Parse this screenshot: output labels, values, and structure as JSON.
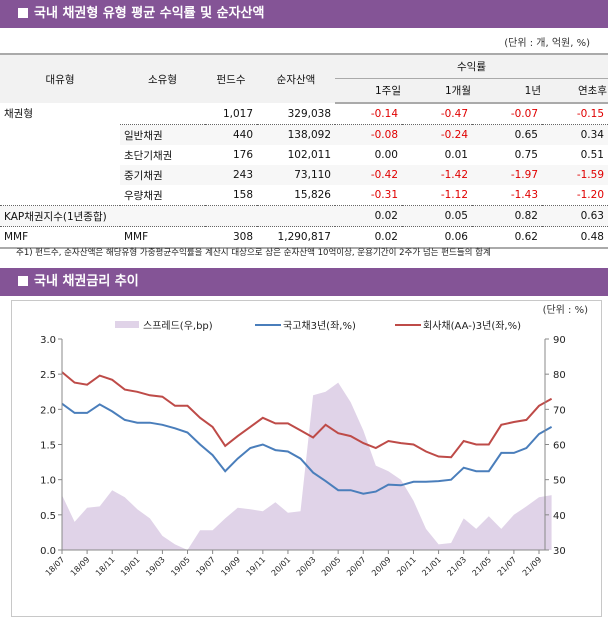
{
  "section1": {
    "title": "국내 채권형 유형 평균 수익률 및 순자산액",
    "unit": "(단위 : 개, 억원, %)"
  },
  "table": {
    "headers": {
      "major": "대유형",
      "minor": "소유형",
      "funds": "펀드수",
      "nav": "순자산액",
      "returns": "수익률",
      "r1w": "1주일",
      "r1m": "1개월",
      "r1y": "1년",
      "ytd": "연초후"
    },
    "rows": [
      {
        "major": "채권형",
        "minor": "",
        "funds": "1,017",
        "nav": "329,038",
        "r1w": "-0.14",
        "r1m": "-0.47",
        "r1y": "-0.07",
        "ytd": "-0.15"
      },
      {
        "major": "",
        "minor": "일반채권",
        "funds": "440",
        "nav": "138,092",
        "r1w": "-0.08",
        "r1m": "-0.24",
        "r1y": "0.65",
        "ytd": "0.34"
      },
      {
        "major": "",
        "minor": "초단기채권",
        "funds": "176",
        "nav": "102,011",
        "r1w": "0.00",
        "r1m": "0.01",
        "r1y": "0.75",
        "ytd": "0.51"
      },
      {
        "major": "",
        "minor": "중기채권",
        "funds": "243",
        "nav": "73,110",
        "r1w": "-0.42",
        "r1m": "-1.42",
        "r1y": "-1.97",
        "ytd": "-1.59"
      },
      {
        "major": "",
        "minor": "우량채권",
        "funds": "158",
        "nav": "15,826",
        "r1w": "-0.31",
        "r1m": "-1.12",
        "r1y": "-1.43",
        "ytd": "-1.20"
      },
      {
        "major": "KAP채권지수(1년종합)",
        "minor": "",
        "funds": "",
        "nav": "",
        "r1w": "0.02",
        "r1m": "0.05",
        "r1y": "0.82",
        "ytd": "0.63"
      },
      {
        "major": "MMF",
        "minor": "MMF",
        "funds": "308",
        "nav": "1,290,817",
        "r1w": "0.02",
        "r1m": "0.06",
        "r1y": "0.62",
        "ytd": "0.48"
      }
    ],
    "negative_color": "#e00000"
  },
  "footnote": "주1) 펀드수, 순자산액은 해당유형 가중평균수익률을 계산시 대상으로 삼은 순자산액 10억이상, 운용기간이 2주가 넘는 펀드들의 합계",
  "section2": {
    "title": "국내 채권금리 추이"
  },
  "chart_data": {
    "type": "line",
    "unit": "(단위 : %)",
    "x": [
      "18/07",
      "18/08",
      "18/09",
      "18/10",
      "18/11",
      "18/12",
      "19/01",
      "19/02",
      "19/03",
      "19/04",
      "19/05",
      "19/06",
      "19/07",
      "19/08",
      "19/09",
      "19/10",
      "19/11",
      "19/12",
      "20/01",
      "20/02",
      "20/03",
      "20/04",
      "20/05",
      "20/06",
      "20/07",
      "20/08",
      "20/09",
      "20/10",
      "20/11",
      "20/12",
      "21/01",
      "21/02",
      "21/03",
      "21/04",
      "21/05",
      "21/06",
      "21/07",
      "21/08",
      "21/09",
      "21/10"
    ],
    "x_ticks": [
      "18/07",
      "18/09",
      "18/11",
      "19/01",
      "19/03",
      "19/05",
      "19/07",
      "19/09",
      "19/11",
      "20/01",
      "20/03",
      "20/05",
      "20/07",
      "20/09",
      "20/11",
      "21/01",
      "21/03",
      "21/05",
      "21/07",
      "21/09"
    ],
    "y_left": {
      "range": [
        0,
        3
      ],
      "ticks": [
        "0.0",
        "0.5",
        "1.0",
        "1.5",
        "2.0",
        "2.5",
        "3.0"
      ]
    },
    "y_right": {
      "range": [
        30,
        90
      ],
      "ticks": [
        "30",
        "40",
        "50",
        "60",
        "70",
        "80",
        "90"
      ]
    },
    "legend_position": "top",
    "series": [
      {
        "name": "스프레드(우,bp)",
        "type": "area",
        "axis": "right",
        "color": "#e0d3e8",
        "values": [
          45.6,
          38,
          42,
          42.4,
          47,
          45,
          41.6,
          39,
          34,
          31.6,
          30,
          35.6,
          35.6,
          39,
          42,
          41.6,
          41,
          43.6,
          40.6,
          41,
          74,
          75,
          77.6,
          72,
          64,
          54,
          52.4,
          50,
          44,
          36,
          31.6,
          32,
          39,
          36,
          39.6,
          36,
          40,
          42.4,
          45,
          45.6
        ]
      },
      {
        "name": "국고채3년(좌,%)",
        "type": "line",
        "axis": "left",
        "color": "#4a7ebb",
        "values": [
          2.08,
          1.95,
          1.95,
          2.07,
          1.97,
          1.85,
          1.81,
          1.81,
          1.78,
          1.73,
          1.67,
          1.5,
          1.35,
          1.12,
          1.3,
          1.45,
          1.5,
          1.42,
          1.4,
          1.3,
          1.1,
          0.98,
          0.85,
          0.85,
          0.8,
          0.83,
          0.93,
          0.92,
          0.97,
          0.97,
          0.98,
          1.0,
          1.17,
          1.12,
          1.12,
          1.38,
          1.38,
          1.45,
          1.65,
          1.75
        ]
      },
      {
        "name": "회사채(AA-)3년(좌,%)",
        "type": "line",
        "axis": "left",
        "color": "#be4b48",
        "values": [
          2.53,
          2.38,
          2.35,
          2.48,
          2.42,
          2.28,
          2.25,
          2.2,
          2.18,
          2.05,
          2.05,
          1.88,
          1.75,
          1.48,
          1.62,
          1.75,
          1.88,
          1.8,
          1.8,
          1.7,
          1.6,
          1.78,
          1.66,
          1.62,
          1.52,
          1.45,
          1.55,
          1.52,
          1.5,
          1.4,
          1.33,
          1.32,
          1.55,
          1.5,
          1.5,
          1.78,
          1.82,
          1.85,
          2.05,
          2.15
        ]
      }
    ]
  }
}
